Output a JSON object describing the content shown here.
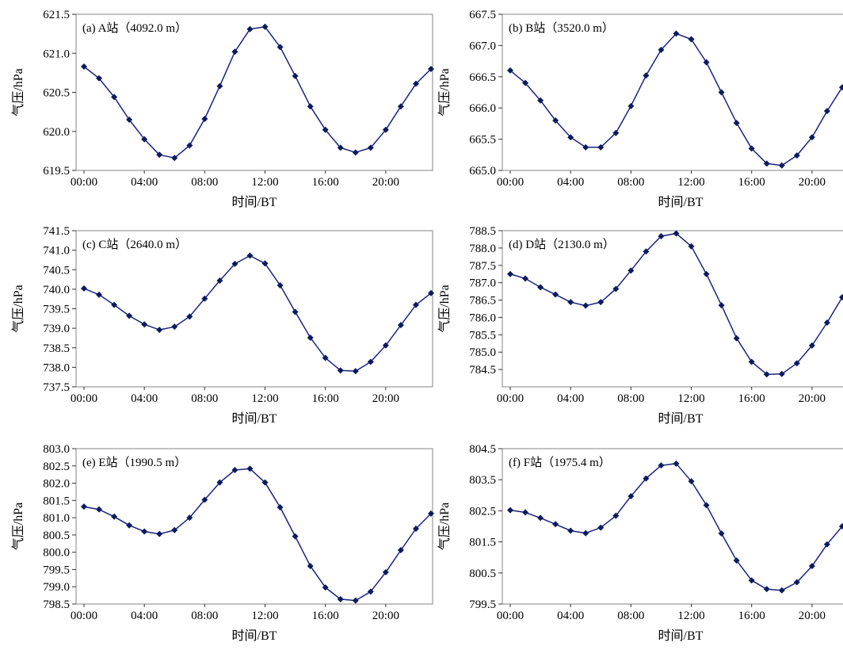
{
  "figure": {
    "x_axis_label": "时间/BT",
    "y_axis_label": "气压/hPa",
    "x_tick_labels": [
      "00:00",
      "04:00",
      "08:00",
      "12:00",
      "16:00",
      "20:00"
    ],
    "line_color": "#1a237e",
    "marker_color": "#0d1b5e"
  },
  "chart_data": [
    {
      "type": "line",
      "title": "(a) A站（4092.0 m）",
      "xlabel": "时间/BT",
      "ylabel": "气压/hPa",
      "xlim": [
        0,
        23
      ],
      "ylim": [
        619.5,
        621.5
      ],
      "y_ticks": [
        "619.5",
        "620.0",
        "620.5",
        "621.0",
        "621.5"
      ],
      "x": [
        0,
        1,
        2,
        3,
        4,
        5,
        6,
        7,
        8,
        9,
        10,
        11,
        12,
        13,
        14,
        15,
        16,
        17,
        18,
        19,
        20,
        21,
        22,
        23
      ],
      "values": [
        620.83,
        620.68,
        620.44,
        620.15,
        619.9,
        619.7,
        619.66,
        619.82,
        620.16,
        620.58,
        621.02,
        621.31,
        621.34,
        621.08,
        620.71,
        620.32,
        620.02,
        619.79,
        619.73,
        619.79,
        620.02,
        620.32,
        620.61,
        620.8
      ]
    },
    {
      "type": "line",
      "title": "(b) B站（3520.0 m）",
      "xlabel": "时间/BT",
      "ylabel": "气压/hPa",
      "xlim": [
        0,
        23
      ],
      "ylim": [
        665.0,
        667.5
      ],
      "y_ticks": [
        "665.0",
        "665.5",
        "666.0",
        "666.5",
        "667.0",
        "667.5"
      ],
      "x": [
        0,
        1,
        2,
        3,
        4,
        5,
        6,
        7,
        8,
        9,
        10,
        11,
        12,
        13,
        14,
        15,
        16,
        17,
        18,
        19,
        20,
        21,
        22,
        23
      ],
      "values": [
        666.6,
        666.4,
        666.12,
        665.8,
        665.53,
        665.37,
        665.37,
        665.6,
        666.03,
        666.52,
        666.93,
        667.19,
        667.1,
        666.73,
        666.25,
        665.76,
        665.35,
        665.11,
        665.08,
        665.24,
        665.53,
        665.95,
        666.33,
        666.6
      ]
    },
    {
      "type": "line",
      "title": "(c) C站（2640.0 m）",
      "xlabel": "时间/BT",
      "ylabel": "气压/hPa",
      "xlim": [
        0,
        23
      ],
      "ylim": [
        737.5,
        741.5
      ],
      "y_ticks": [
        "737.5",
        "738.0",
        "738.5",
        "739.0",
        "739.5",
        "740.0",
        "740.5",
        "741.0",
        "741.5"
      ],
      "x": [
        0,
        1,
        2,
        3,
        4,
        5,
        6,
        7,
        8,
        9,
        10,
        11,
        12,
        13,
        14,
        15,
        16,
        17,
        18,
        19,
        20,
        21,
        22,
        23
      ],
      "values": [
        740.02,
        739.86,
        739.6,
        739.32,
        739.1,
        738.96,
        739.04,
        739.3,
        739.76,
        740.22,
        740.65,
        740.86,
        740.66,
        740.1,
        739.42,
        738.76,
        738.24,
        737.92,
        737.9,
        738.14,
        738.56,
        739.08,
        739.6,
        739.9
      ]
    },
    {
      "type": "line",
      "title": "(d) D站（2130.0 m）",
      "xlabel": "时间/BT",
      "ylabel": "气压/hPa",
      "xlim": [
        0,
        23
      ],
      "ylim": [
        784.0,
        788.5
      ],
      "y_ticks": [
        "784.5",
        "785.0",
        "785.5",
        "786.0",
        "786.5",
        "787.0",
        "787.5",
        "788.0",
        "788.5"
      ],
      "x": [
        0,
        1,
        2,
        3,
        4,
        5,
        6,
        7,
        8,
        9,
        10,
        11,
        12,
        13,
        14,
        15,
        16,
        17,
        18,
        19,
        20,
        21,
        22,
        23
      ],
      "values": [
        787.25,
        787.12,
        786.87,
        786.66,
        786.44,
        786.34,
        786.44,
        786.82,
        787.35,
        787.9,
        788.34,
        788.42,
        788.05,
        787.25,
        786.35,
        785.4,
        784.72,
        784.36,
        784.37,
        784.68,
        785.19,
        785.85,
        786.58,
        787.0
      ]
    },
    {
      "type": "line",
      "title": "(e) E站（1990.5 m）",
      "xlabel": "时间/BT",
      "ylabel": "气压/hPa",
      "xlim": [
        0,
        23
      ],
      "ylim": [
        798.5,
        803.0
      ],
      "y_ticks": [
        "798.5",
        "799.0",
        "799.5",
        "800.0",
        "800.5",
        "801.0",
        "801.5",
        "802.0",
        "802.5",
        "803.0"
      ],
      "x": [
        0,
        1,
        2,
        3,
        4,
        5,
        6,
        7,
        8,
        9,
        10,
        11,
        12,
        13,
        14,
        15,
        16,
        17,
        18,
        19,
        20,
        21,
        22,
        23
      ],
      "values": [
        801.32,
        801.24,
        801.03,
        800.78,
        800.6,
        800.53,
        800.64,
        801.0,
        801.52,
        802.02,
        802.38,
        802.42,
        802.02,
        801.3,
        800.46,
        799.6,
        798.98,
        798.64,
        798.6,
        798.86,
        799.42,
        800.06,
        800.68,
        801.12
      ]
    },
    {
      "type": "line",
      "title": "(f) F站（1975.4 m）",
      "xlabel": "时间/BT",
      "ylabel": "气压/hPa",
      "xlim": [
        0,
        23
      ],
      "ylim": [
        799.5,
        804.5
      ],
      "y_ticks": [
        "799.5",
        "800.5",
        "801.5",
        "802.5",
        "803.5",
        "804.5"
      ],
      "x": [
        0,
        1,
        2,
        3,
        4,
        5,
        6,
        7,
        8,
        9,
        10,
        11,
        12,
        13,
        14,
        15,
        16,
        17,
        18,
        19,
        20,
        21,
        22,
        23
      ],
      "values": [
        802.52,
        802.45,
        802.27,
        802.07,
        801.86,
        801.78,
        801.96,
        802.34,
        802.97,
        803.54,
        803.96,
        804.02,
        803.45,
        802.68,
        801.77,
        800.9,
        800.26,
        799.98,
        799.94,
        800.2,
        800.72,
        801.42,
        802.0,
        802.36
      ]
    }
  ]
}
